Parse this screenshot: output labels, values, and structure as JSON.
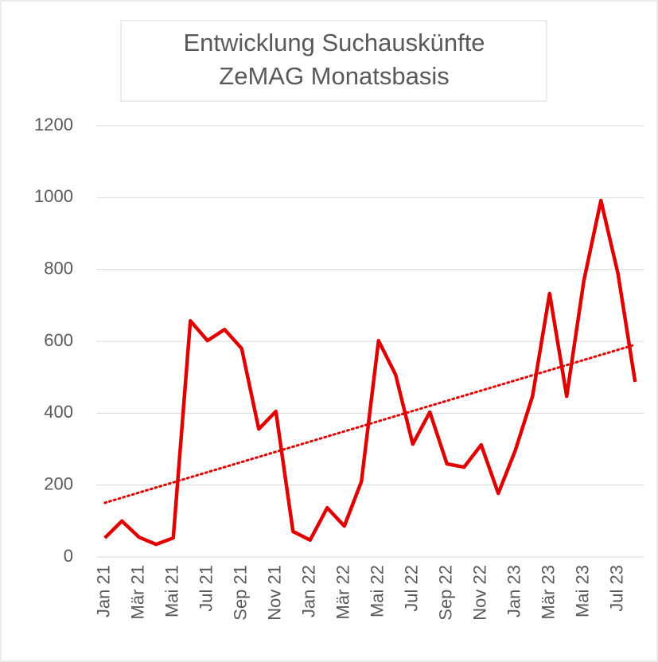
{
  "chart_data": {
    "type": "line",
    "title": [
      "Entwicklung Suchauskünfte",
      "ZeMAG Monatsbasis"
    ],
    "categories": [
      "Jan 21",
      null,
      "Mär 21",
      null,
      "Mai 21",
      null,
      "Jul 21",
      null,
      "Sep 21",
      null,
      "Nov 21",
      null,
      "Jan 22",
      null,
      "Mär 22",
      null,
      "Mai 22",
      null,
      "Jul 22",
      null,
      "Sep 22",
      null,
      "Nov 22",
      null,
      "Jan 23",
      null,
      "Mär 23",
      null,
      "Mai 23",
      null,
      "Jul 23",
      null
    ],
    "series": [
      {
        "color": "#e00000",
        "values": [
          53,
          100,
          55,
          35,
          53,
          657,
          602,
          633,
          580,
          356,
          405,
          71,
          47,
          137,
          86,
          210,
          602,
          507,
          314,
          403,
          259,
          250,
          312,
          177,
          297,
          447,
          733,
          447,
          768,
          992,
          788,
          487
        ]
      }
    ],
    "trendline": true,
    "ylim": [
      0,
      1200
    ],
    "yticks": [
      0,
      200,
      400,
      600,
      800,
      1000,
      1200
    ],
    "grid": true
  }
}
